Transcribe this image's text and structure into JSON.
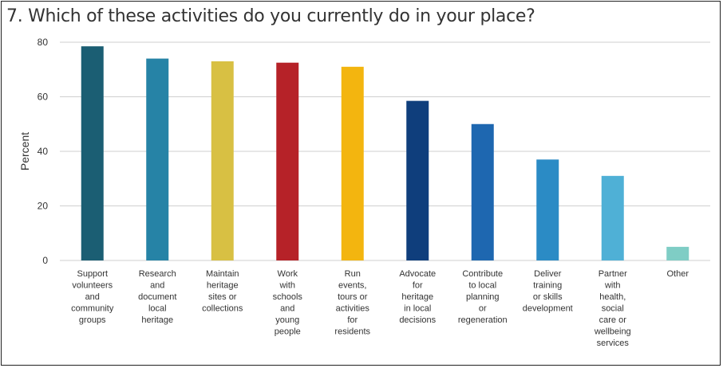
{
  "chart_data": {
    "type": "bar",
    "title": "7. Which of these activities do you currently do in your place?",
    "xlabel": "",
    "ylabel": "Percent",
    "ylim": [
      0,
      80
    ],
    "yticks": [
      0,
      20,
      40,
      60,
      80
    ],
    "grid": true,
    "categories": [
      [
        "Support",
        "volunteers",
        "and",
        "community",
        "groups"
      ],
      [
        "Research",
        "and",
        "document",
        "local",
        "heritage"
      ],
      [
        "Maintain",
        "heritage",
        "sites or",
        "collections"
      ],
      [
        "Work",
        "with",
        "schools",
        "and",
        "young",
        "people"
      ],
      [
        "Run",
        "events,",
        "tours or",
        "activities",
        "for",
        "residents"
      ],
      [
        "Advocate",
        "for",
        "heritage",
        "in local",
        "decisions"
      ],
      [
        "Contribute",
        "to local",
        "planning",
        "or",
        "regeneration"
      ],
      [
        "Deliver",
        "training",
        "or skills",
        "development"
      ],
      [
        "Partner",
        "with",
        "health,",
        "social",
        "care or",
        "wellbeing",
        "services"
      ],
      [
        "Other"
      ]
    ],
    "values": [
      78.5,
      74,
      73,
      72.5,
      71,
      58.5,
      50,
      37,
      31,
      5
    ],
    "colors": [
      "#1b5e73",
      "#2683a6",
      "#d8c043",
      "#b62228",
      "#f3b50f",
      "#0f3e7c",
      "#1e67b0",
      "#2b8bc5",
      "#4fb0d6",
      "#7fcdc5"
    ]
  }
}
